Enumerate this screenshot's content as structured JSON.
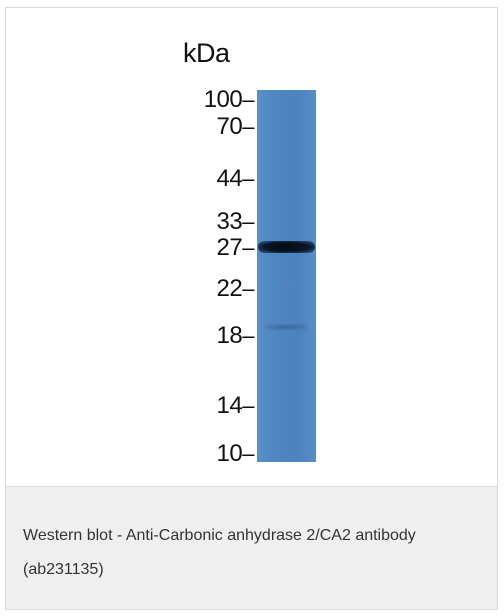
{
  "figure": {
    "unit_label": "kDa",
    "markers": [
      {
        "label": "100",
        "kda": 100
      },
      {
        "label": "70",
        "kda": 70
      },
      {
        "label": "44",
        "kda": 44
      },
      {
        "label": "33",
        "kda": 33
      },
      {
        "label": "27",
        "kda": 27
      },
      {
        "label": "22",
        "kda": 22
      },
      {
        "label": "18",
        "kda": 18
      },
      {
        "label": "14",
        "kda": 14
      },
      {
        "label": "10",
        "kda": 10
      }
    ],
    "band_kda": 27,
    "colors": {
      "membrane": "#4b82bf",
      "band": "#0a1525"
    }
  },
  "caption": {
    "text": "Western blot - Anti-Carbonic anhydrase 2/CA2 antibody (ab231135)"
  },
  "colors": {
    "caption_background": "#efefef",
    "border": "#d9d9d9"
  }
}
